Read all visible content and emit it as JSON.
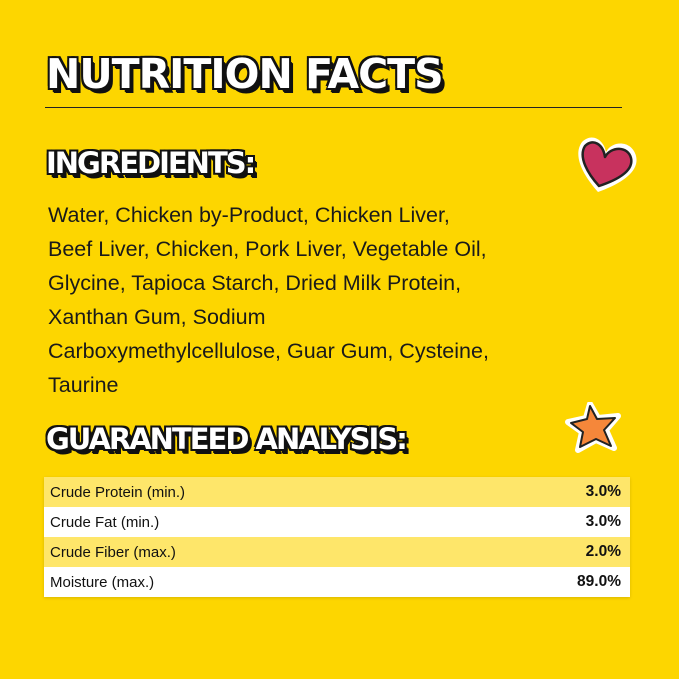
{
  "title": "NUTRITION FACTS",
  "ingredients": {
    "heading": "INGREDIENTS:",
    "lines": [
      "Water, Chicken by-Product, Chicken Liver,",
      "Beef Liver, Chicken, Pork Liver, Vegetable Oil,",
      "Glycine, Tapioca Starch, Dried Milk Protein,",
      "Xanthan Gum, Sodium",
      "Carboxymethylcellulose, Guar Gum, Cysteine,",
      "Taurine"
    ]
  },
  "analysis": {
    "heading": "GUARANTEED ANALYSIS:",
    "rows": [
      {
        "label": "Crude Protein (min.)",
        "value": "3.0%"
      },
      {
        "label": "Crude Fat (min.)",
        "value": "3.0%"
      },
      {
        "label": "Crude Fiber (max.)",
        "value": "2.0%"
      },
      {
        "label": "Moisture (max.)",
        "value": "89.0%"
      }
    ]
  },
  "icons": {
    "heart": "heart-icon",
    "star": "star-icon"
  },
  "colors": {
    "background": "#fdd600",
    "row_alt": "#fee66a",
    "heart": "#c8325e",
    "star": "#f5873a"
  }
}
